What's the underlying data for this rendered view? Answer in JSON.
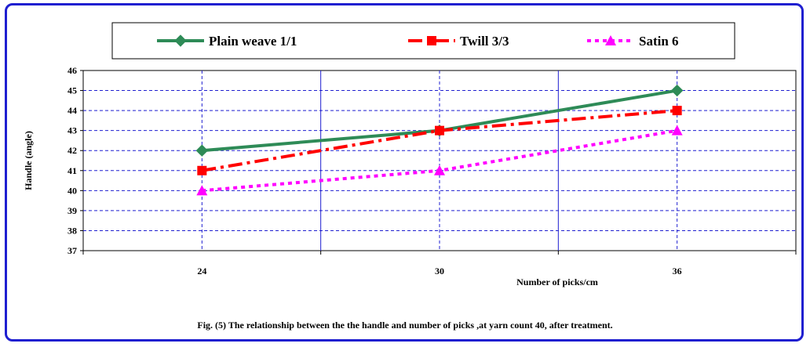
{
  "chart_data": {
    "type": "line",
    "categories": [
      "24",
      "30",
      "36"
    ],
    "x": [
      24,
      30,
      36
    ],
    "series": [
      {
        "name": "Plain weave 1/1",
        "values": [
          42,
          43,
          45
        ],
        "color": "#2e8b57",
        "dash": "solid",
        "marker": "diamond"
      },
      {
        "name": "Twill 3/3",
        "values": [
          41,
          43,
          44
        ],
        "color": "#ff0000",
        "dash": "dash-dot",
        "marker": "square"
      },
      {
        "name": "Satin 6",
        "values": [
          40,
          41,
          43
        ],
        "color": "#ff00ff",
        "dash": "dotted",
        "marker": "triangle"
      }
    ],
    "xlabel": "Number of picks/cm",
    "ylabel": "Handle (angle)",
    "ylim": [
      37,
      46
    ],
    "yticks": [
      "37",
      "38",
      "39",
      "40",
      "41",
      "42",
      "43",
      "44",
      "45",
      "46"
    ],
    "grid": true,
    "legend_position": "top"
  },
  "caption": "Fig. (5) The relationship between  the the handle and number of picks ,at yarn count 40, after treatment."
}
